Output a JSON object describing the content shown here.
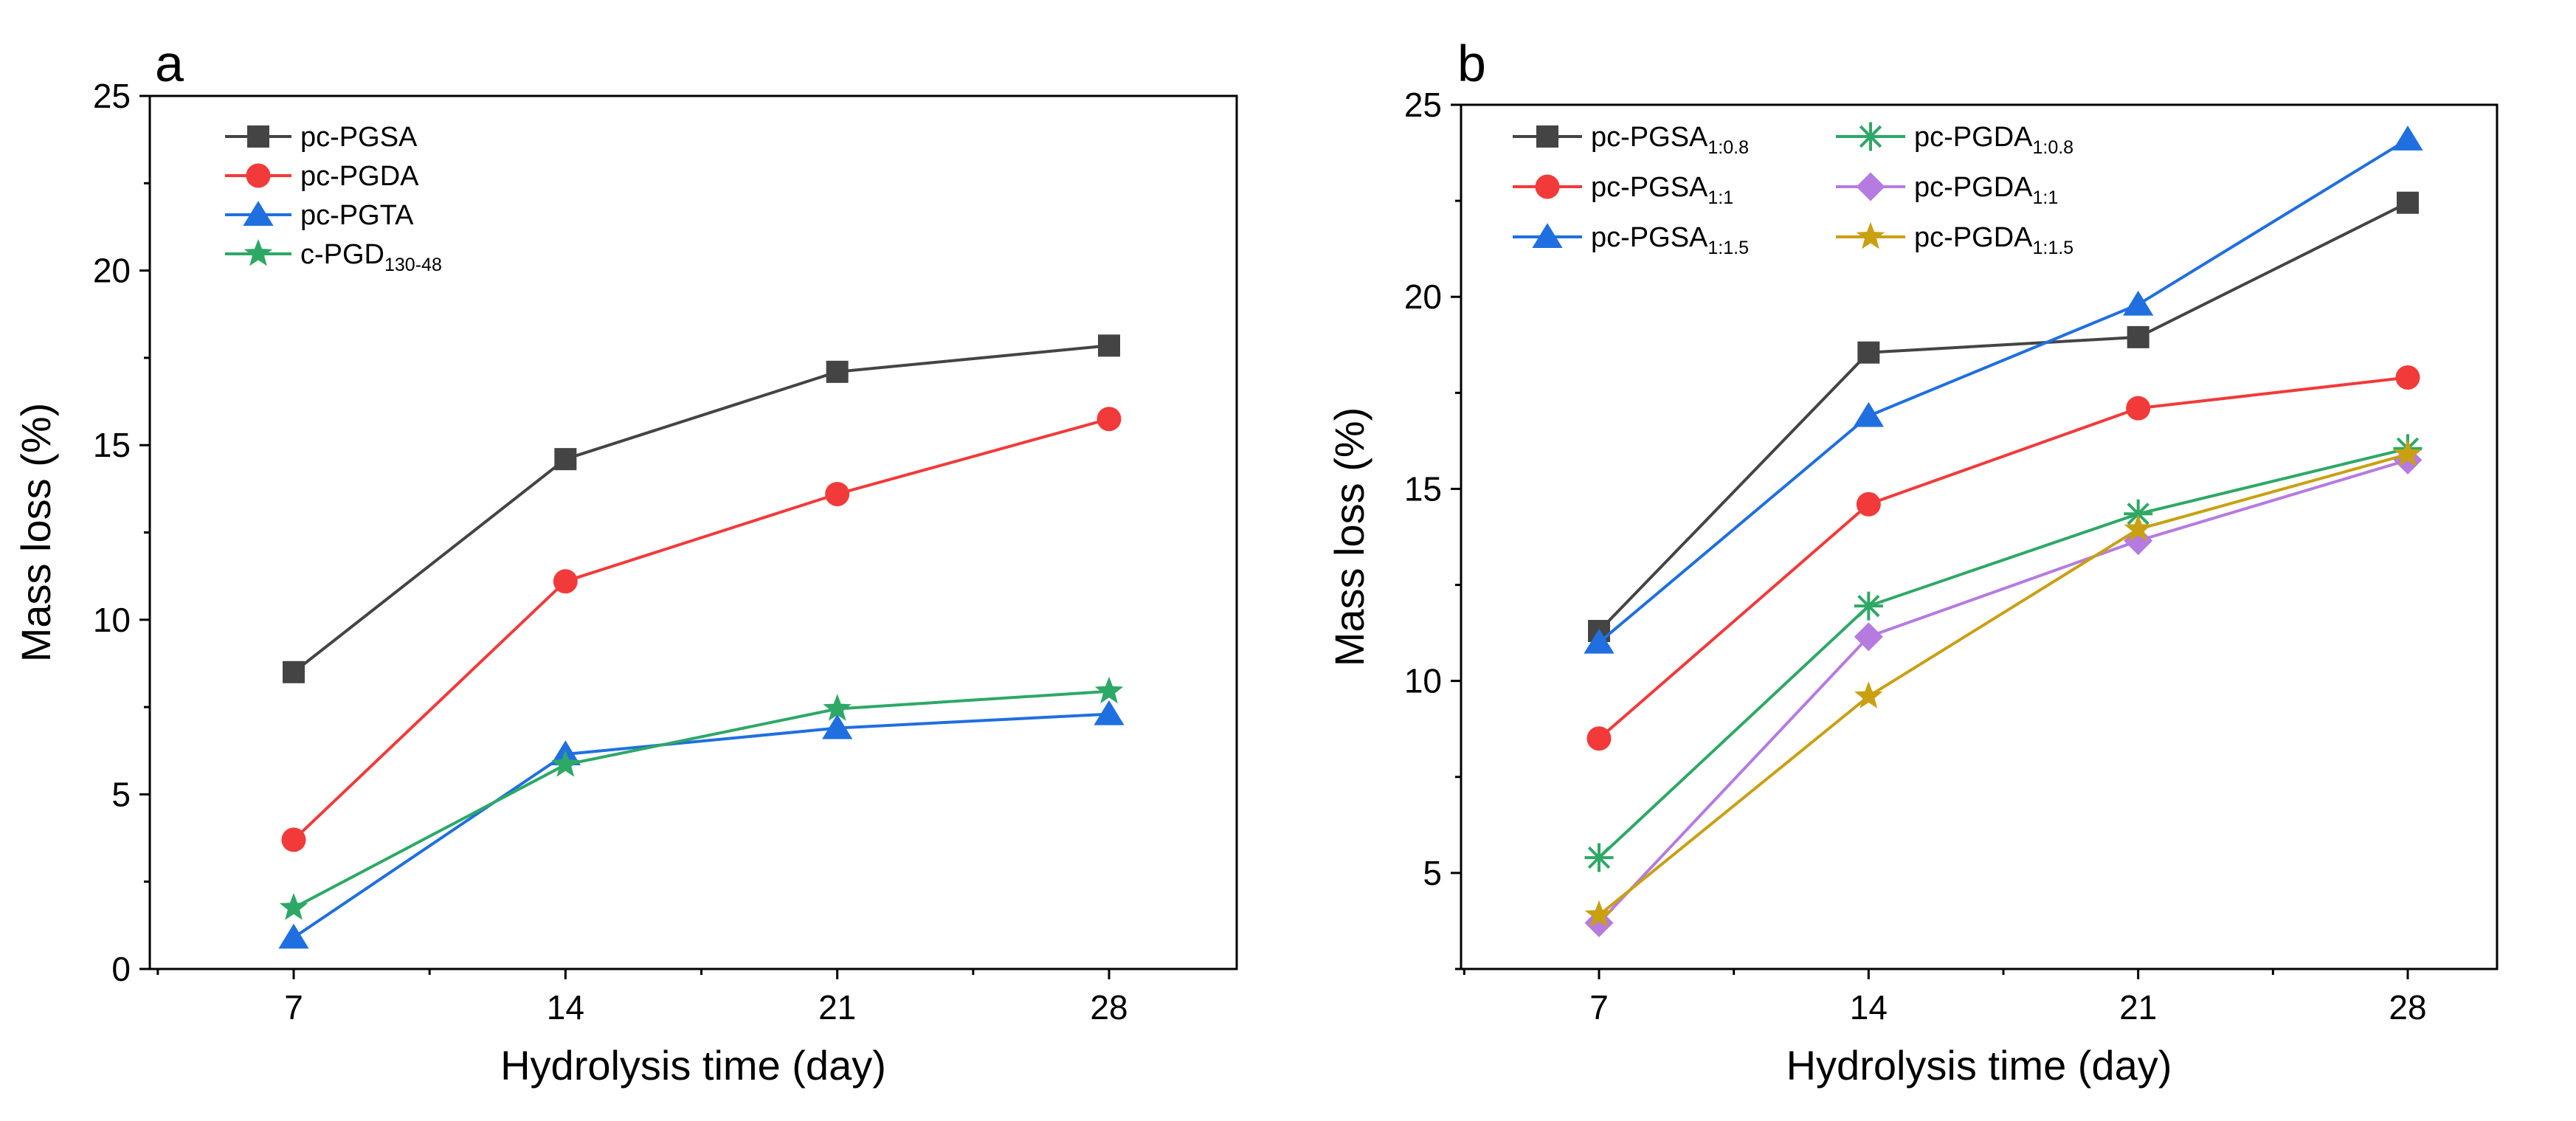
{
  "chart_data": [
    {
      "type": "line",
      "panel_label": "a",
      "xlabel": "Hydrolysis time (day)",
      "ylabel": "Mass loss (%)",
      "x": [
        7,
        14,
        21,
        28
      ],
      "x_ticks": [
        "7",
        "14",
        "21",
        "28"
      ],
      "ylim": [
        0,
        25
      ],
      "y_ticks": [
        "0",
        "5",
        "10",
        "15",
        "20",
        "25"
      ],
      "grid": false,
      "legend_position": "top-left",
      "series": [
        {
          "name": "pc-PGSA",
          "sub": "",
          "color": "#444444",
          "marker": "square",
          "values": [
            8.5,
            14.6,
            17.1,
            17.85
          ]
        },
        {
          "name": "pc-PGDA",
          "sub": "",
          "color": "#f23a3a",
          "marker": "circle",
          "values": [
            3.7,
            11.1,
            13.6,
            15.75
          ]
        },
        {
          "name": "pc-PGTA",
          "sub": "",
          "color": "#1f6fe0",
          "marker": "triangle",
          "values": [
            0.9,
            6.15,
            6.9,
            7.3
          ]
        },
        {
          "name": "c-PGD",
          "sub": "130-48",
          "color": "#2ea866",
          "marker": "star",
          "values": [
            1.75,
            5.85,
            7.45,
            7.95
          ]
        }
      ]
    },
    {
      "type": "line",
      "panel_label": "b",
      "xlabel": "Hydrolysis time (day)",
      "ylabel": "Mass loss (%)",
      "x": [
        7,
        14,
        21,
        28
      ],
      "x_ticks": [
        "7",
        "14",
        "21",
        "28"
      ],
      "ylim": [
        2.5,
        25
      ],
      "y_ticks": [
        "5",
        "10",
        "15",
        "20",
        "25"
      ],
      "grid": false,
      "legend_position": "top-left",
      "series": [
        {
          "name": "pc-PGSA",
          "sub": "1:0.8",
          "color": "#444444",
          "marker": "square",
          "values": [
            11.3,
            18.55,
            18.95,
            22.45
          ]
        },
        {
          "name": "pc-PGSA",
          "sub": "1:1",
          "color": "#f23a3a",
          "marker": "circle",
          "values": [
            8.5,
            14.6,
            17.1,
            17.9
          ]
        },
        {
          "name": "pc-PGSA",
          "sub": "1:1.5",
          "color": "#1f6fe0",
          "marker": "triangle",
          "values": [
            11.0,
            16.9,
            19.8,
            24.1
          ]
        },
        {
          "name": "pc-PGDA",
          "sub": "1:0.8",
          "color": "#2ea866",
          "marker": "asterisk",
          "values": [
            5.4,
            11.95,
            14.35,
            16.05
          ]
        },
        {
          "name": "pc-PGDA",
          "sub": "1:1",
          "color": "#b57be0",
          "marker": "diamond",
          "values": [
            3.7,
            11.15,
            13.65,
            15.75
          ]
        },
        {
          "name": "pc-PGDA",
          "sub": "1:1.5",
          "color": "#c9a012",
          "marker": "star",
          "values": [
            3.9,
            9.6,
            13.95,
            15.9
          ]
        }
      ]
    }
  ]
}
